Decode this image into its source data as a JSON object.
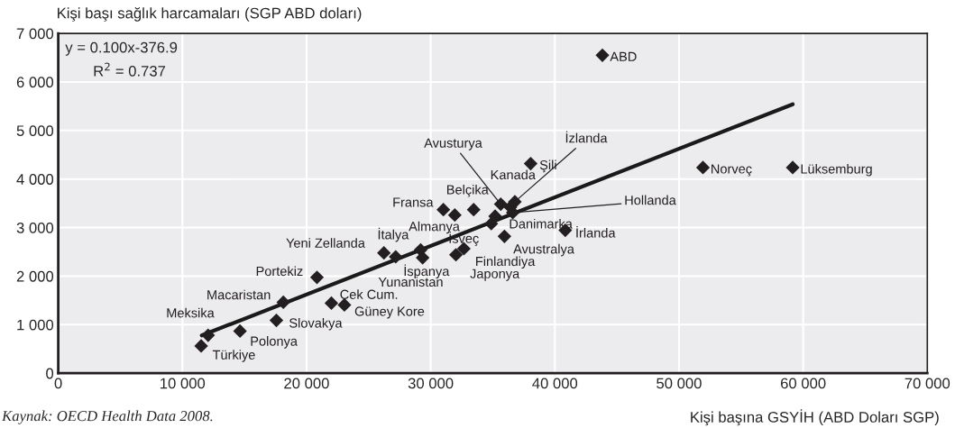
{
  "chart_data": {
    "type": "scatter",
    "xlabel": "Kişi başına GSYİH (ABD Doları SGP)",
    "ylabel": "Kişi başı sağlık harcamaları (SGP ABD doları)",
    "xlim": [
      0,
      70000
    ],
    "ylim": [
      0,
      7000
    ],
    "xticks": [
      0,
      {
        "value": 10000,
        "label": "10 000"
      },
      {
        "value": 20000,
        "label": "20 000"
      },
      {
        "value": 30000,
        "label": "30 000"
      },
      {
        "value": 40000,
        "label": "40 000"
      },
      {
        "value": 50000,
        "label": "50 000"
      },
      {
        "value": 60000,
        "label": "60 000"
      },
      {
        "value": 70000,
        "label": "70 000"
      }
    ],
    "yticks": [
      0,
      {
        "value": 1000,
        "label": "1 000"
      },
      {
        "value": 2000,
        "label": "2 000"
      },
      {
        "value": 3000,
        "label": "3 000"
      },
      {
        "value": 4000,
        "label": "4 000"
      },
      {
        "value": 5000,
        "label": "5 000"
      },
      {
        "value": 6000,
        "label": "6 000"
      },
      {
        "value": 7000,
        "label": "7 000"
      }
    ],
    "grid": true,
    "marker": "diamond",
    "series": [
      {
        "color": "#231f20",
        "x": [
          43830,
          59160,
          51930,
          38050,
          36780,
          36420,
          35640,
          36610,
          33460,
          31020,
          31940,
          35190,
          34880,
          35940,
          40840,
          32670,
          32030,
          29350,
          27180,
          29190,
          26230,
          20840,
          18130,
          22000,
          23050,
          17570,
          14640,
          12070,
          11510
        ],
        "values": [
          6550,
          4236,
          4236,
          4317,
          3532,
          3420,
          3482,
          3309,
          3370,
          3370,
          3258,
          3234,
          3080,
          2819,
          2944,
          2565,
          2440,
          2379,
          2398,
          2541,
          2478,
          1975,
          1463,
          1444,
          1406,
          1088,
          869,
          781,
          562
        ]
      },
      {
        "type": "line",
        "color": "#1a1a1a",
        "marker": "none",
        "line_style": "solid",
        "x": [
          11560,
          59160
        ],
        "values": [
          779,
          5539
        ]
      }
    ],
    "annotations": [
      {
        "text": "ABD",
        "x": 43830,
        "y": 6550
      },
      {
        "text": "Lüksemburg",
        "x": 59160,
        "y": 4236
      },
      {
        "text": "Norveç",
        "x": 51930,
        "y": 4236
      },
      {
        "text": "Şili",
        "x": 38050,
        "y": 4317
      },
      {
        "text": "İzlanda",
        "x": 36780,
        "y": 3532
      },
      {
        "text": "Kanada",
        "x": 36420,
        "y": 3420
      },
      {
        "text": "Avusturya",
        "x": 35640,
        "y": 3482
      },
      {
        "text": "Hollanda",
        "x": 36610,
        "y": 3309
      },
      {
        "text": "Belçika",
        "x": 33460,
        "y": 3370
      },
      {
        "text": "Fransa",
        "x": 31020,
        "y": 3370
      },
      {
        "text": "Almanya",
        "x": 31940,
        "y": 3258
      },
      {
        "text": "Danimarka",
        "x": 35190,
        "y": 3234
      },
      {
        "text": "İsveç",
        "x": 34880,
        "y": 3080
      },
      {
        "text": "Avustralya",
        "x": 35940,
        "y": 2819
      },
      {
        "text": "İrlanda",
        "x": 40840,
        "y": 2944
      },
      {
        "text": "Finlandiya",
        "x": 32670,
        "y": 2565
      },
      {
        "text": "Japonya",
        "x": 32030,
        "y": 2440
      },
      {
        "text": "İspanya",
        "x": 29350,
        "y": 2379
      },
      {
        "text": "Yunanistan",
        "x": 27180,
        "y": 2398
      },
      {
        "text": "İtalya",
        "x": 29190,
        "y": 2541
      },
      {
        "text": "Yeni Zellanda",
        "x": 26230,
        "y": 2478
      },
      {
        "text": "Portekiz",
        "x": 20840,
        "y": 1975
      },
      {
        "text": "Macaristan",
        "x": 18130,
        "y": 1463
      },
      {
        "text": "Çek Cum.",
        "x": 22000,
        "y": 1444
      },
      {
        "text": "Güney Kore",
        "x": 23050,
        "y": 1406
      },
      {
        "text": "Slovakya",
        "x": 17570,
        "y": 1088
      },
      {
        "text": "Polonya",
        "x": 14640,
        "y": 869
      },
      {
        "text": "Meksika",
        "x": 12070,
        "y": 781
      },
      {
        "text": "Türkiye",
        "x": 11510,
        "y": 562
      },
      "y = 0.100x-376.9",
      "R$^{2}$ = 0.737",
      "Kaynak: OECD Health Data 2008."
    ]
  }
}
